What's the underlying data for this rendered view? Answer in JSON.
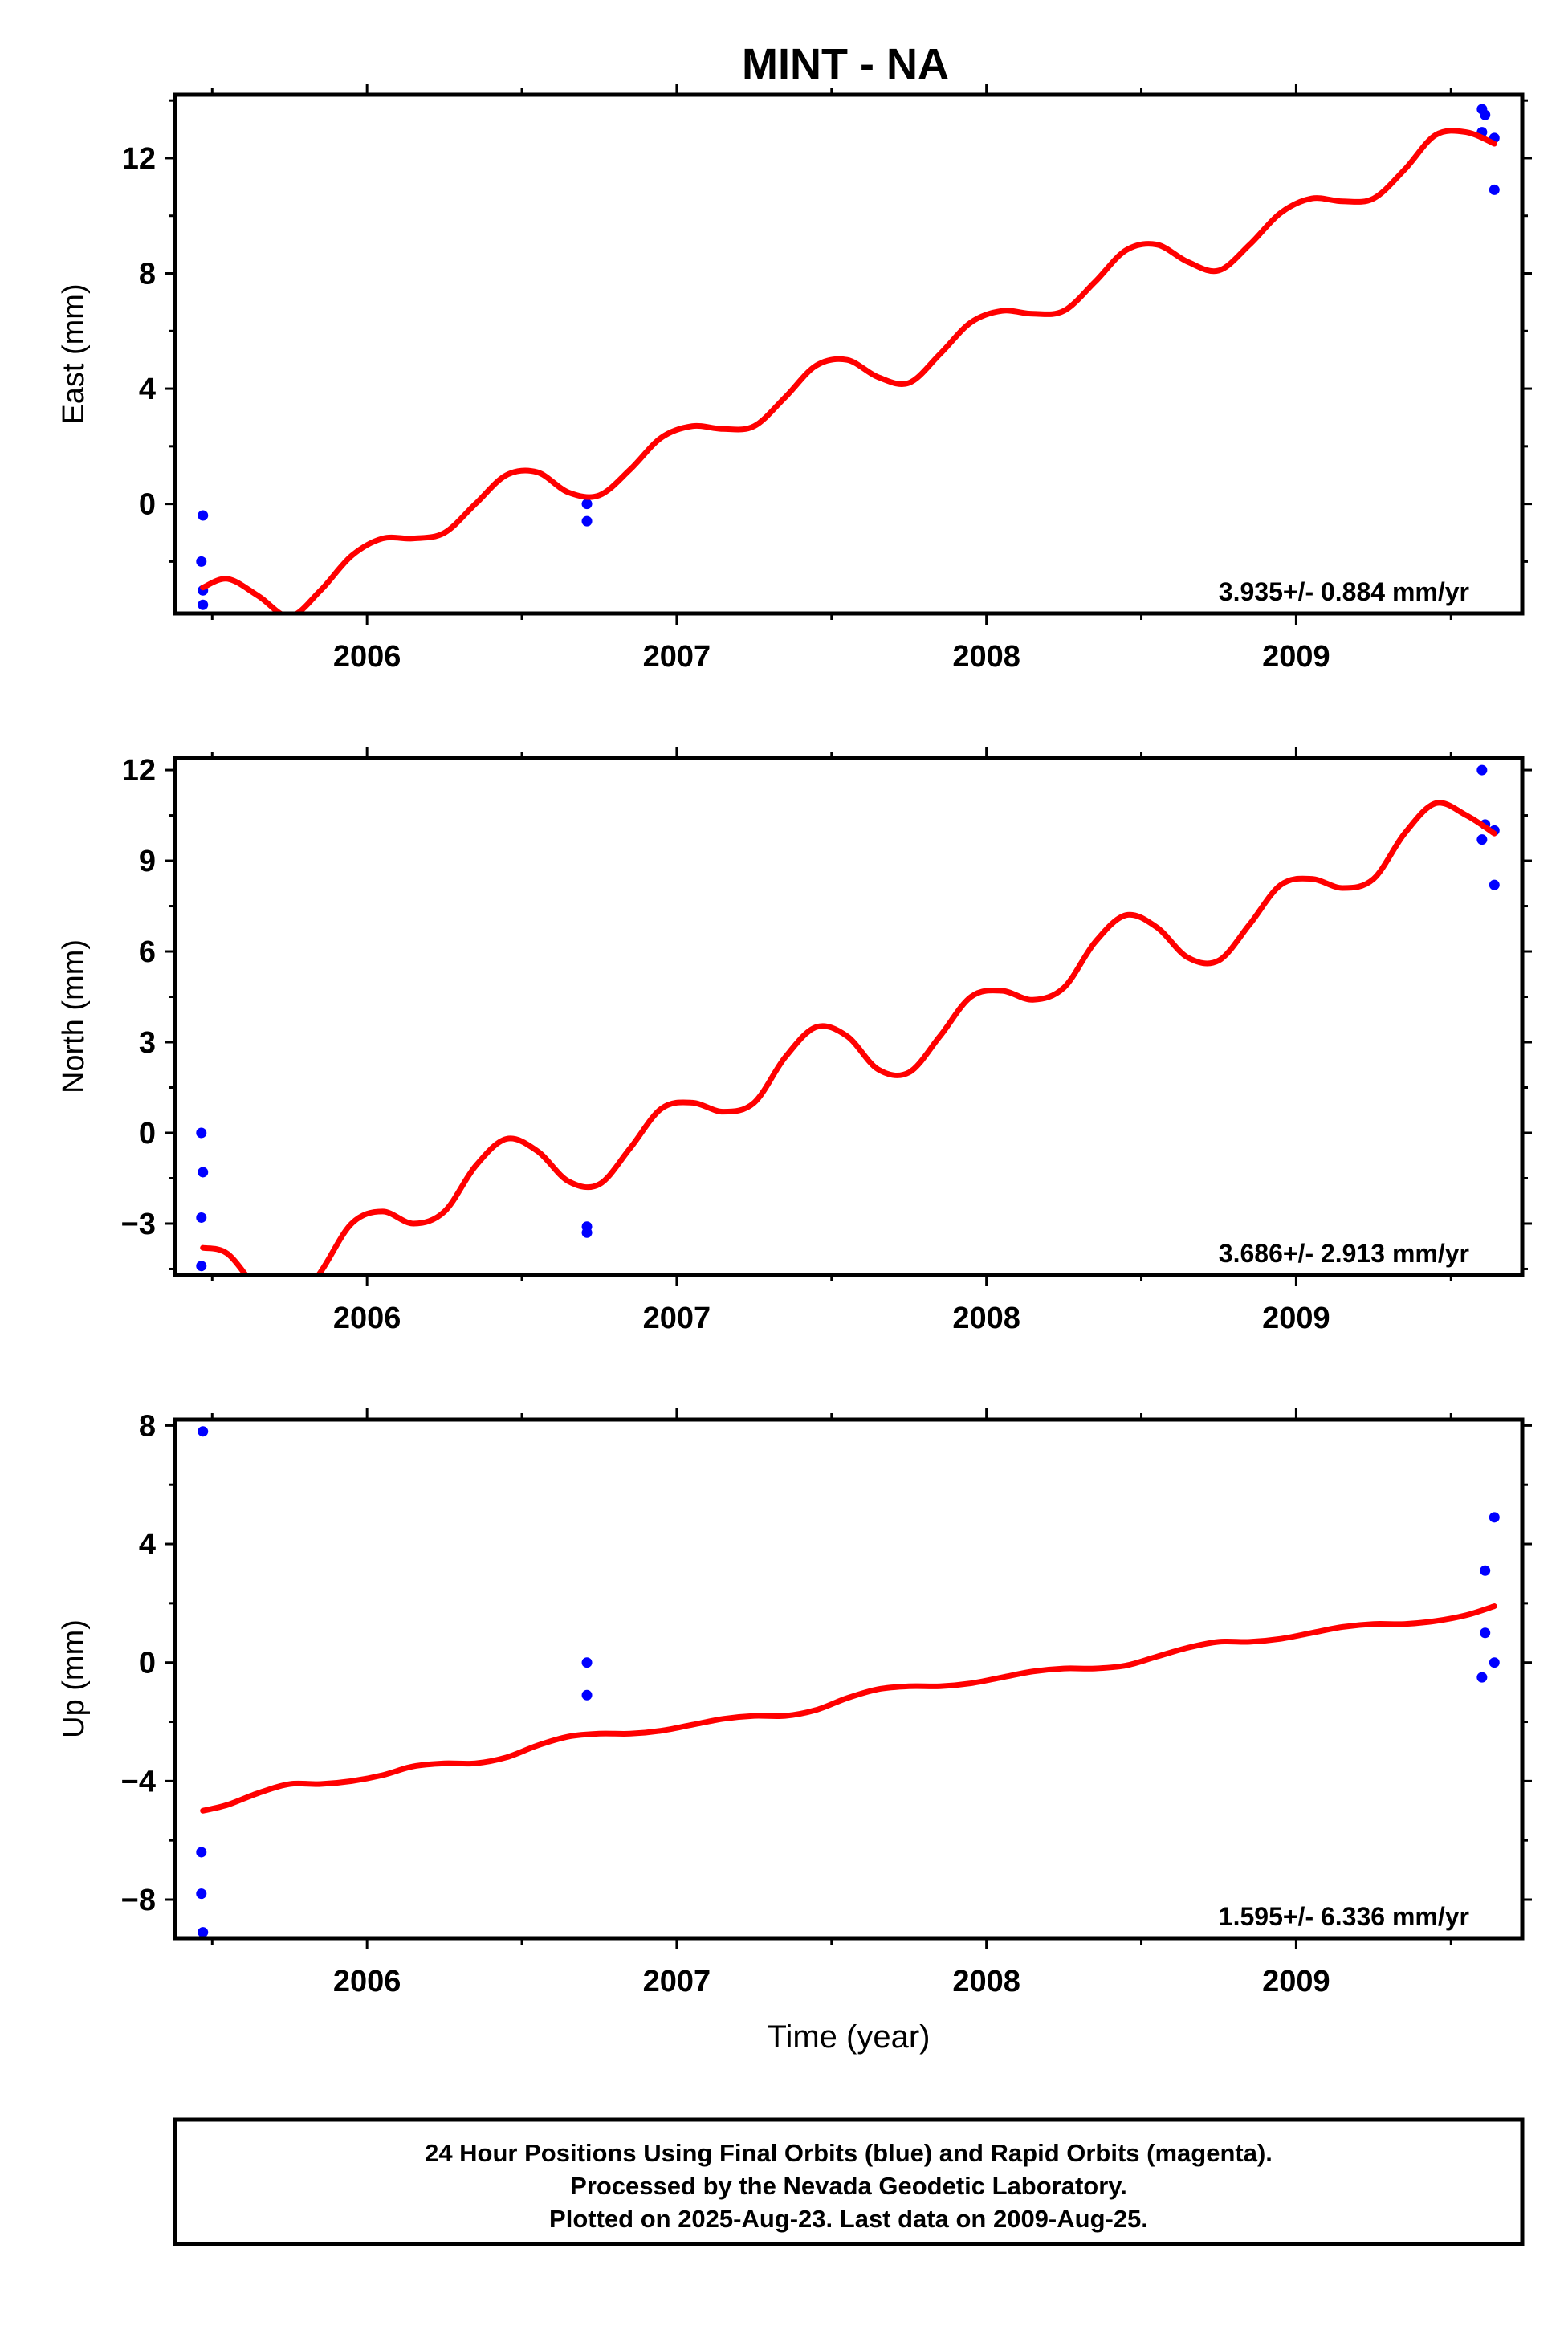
{
  "title": "MINT - NA",
  "colors": {
    "final_orbits": "#0000ff",
    "rapid_orbits": "#ff00ff",
    "model_fit": "#ff0000"
  },
  "footer": {
    "line1": "24 Hour Positions Using Final Orbits (blue) and Rapid Orbits (magenta).",
    "line2": "Processed by the Nevada Geodetic Laboratory.",
    "line3": "Plotted on 2025-Aug-23. Last data on 2009-Aug-25."
  },
  "chart_data": [
    {
      "type": "scatter",
      "panel": "east",
      "ylabel": "East (mm)",
      "xlabel": "",
      "xlim": [
        2005.38,
        2009.73
      ],
      "ylim": [
        -3.8,
        14.2
      ],
      "xticks": [
        2006,
        2007,
        2008,
        2009
      ],
      "yticks": [
        0,
        4,
        8,
        12
      ],
      "rate_label": "3.935+/- 0.884 mm/yr",
      "grid": false,
      "points": [
        {
          "x": 2005.47,
          "y": -0.4
        },
        {
          "x": 2005.465,
          "y": -2.0
        },
        {
          "x": 2005.47,
          "y": -3.0
        },
        {
          "x": 2005.47,
          "y": -3.5
        },
        {
          "x": 2006.71,
          "y": 0.0
        },
        {
          "x": 2006.71,
          "y": -0.6
        },
        {
          "x": 2009.6,
          "y": 13.7
        },
        {
          "x": 2009.61,
          "y": 13.5
        },
        {
          "x": 2009.6,
          "y": 12.9
        },
        {
          "x": 2009.64,
          "y": 12.7
        },
        {
          "x": 2009.64,
          "y": 10.9
        }
      ],
      "fit": {
        "name": "model",
        "x": [
          2005.47,
          2005.55,
          2005.65,
          2005.75,
          2005.85,
          2005.95,
          2006.05,
          2006.15,
          2006.25,
          2006.35,
          2006.45,
          2006.55,
          2006.65,
          2006.75,
          2006.85,
          2006.95,
          2007.05,
          2007.15,
          2007.25,
          2007.35,
          2007.45,
          2007.55,
          2007.65,
          2007.75,
          2007.85,
          2007.95,
          2008.05,
          2008.15,
          2008.25,
          2008.35,
          2008.45,
          2008.55,
          2008.65,
          2008.75,
          2008.85,
          2008.95,
          2009.05,
          2009.15,
          2009.25,
          2009.35,
          2009.45,
          2009.55,
          2009.64
        ],
        "y": [
          -2.9,
          -2.6,
          -3.2,
          -3.9,
          -3.0,
          -1.8,
          -1.2,
          -1.2,
          -1.0,
          0.0,
          1.0,
          1.1,
          0.4,
          0.3,
          1.2,
          2.3,
          2.7,
          2.6,
          2.7,
          3.7,
          4.8,
          5.0,
          4.4,
          4.2,
          5.2,
          6.3,
          6.7,
          6.6,
          6.7,
          7.7,
          8.8,
          9.0,
          8.4,
          8.1,
          9.0,
          10.1,
          10.6,
          10.5,
          10.6,
          11.6,
          12.8,
          12.9,
          12.5
        ]
      }
    },
    {
      "type": "scatter",
      "panel": "north",
      "ylabel": "North (mm)",
      "xlabel": "",
      "xlim": [
        2005.38,
        2009.73
      ],
      "ylim": [
        -4.7,
        12.4
      ],
      "xticks": [
        2006,
        2007,
        2008,
        2009
      ],
      "yticks": [
        -3,
        0,
        3,
        6,
        9,
        12
      ],
      "rate_label": "3.686+/- 2.913 mm/yr",
      "grid": false,
      "points": [
        {
          "x": 2005.465,
          "y": 0.0
        },
        {
          "x": 2005.47,
          "y": -1.3
        },
        {
          "x": 2005.465,
          "y": -2.8
        },
        {
          "x": 2005.465,
          "y": -4.4
        },
        {
          "x": 2006.71,
          "y": -3.1
        },
        {
          "x": 2006.71,
          "y": -3.3
        },
        {
          "x": 2009.6,
          "y": 12.0
        },
        {
          "x": 2009.61,
          "y": 10.2
        },
        {
          "x": 2009.6,
          "y": 9.7
        },
        {
          "x": 2009.64,
          "y": 10.0
        },
        {
          "x": 2009.64,
          "y": 8.2
        }
      ],
      "fit": {
        "name": "model",
        "x": [
          2005.47,
          2005.55,
          2005.65,
          2005.75,
          2005.85,
          2005.95,
          2006.05,
          2006.15,
          2006.25,
          2006.35,
          2006.45,
          2006.55,
          2006.65,
          2006.75,
          2006.85,
          2006.95,
          2007.05,
          2007.15,
          2007.25,
          2007.35,
          2007.45,
          2007.55,
          2007.65,
          2007.75,
          2007.85,
          2007.95,
          2008.05,
          2008.15,
          2008.25,
          2008.35,
          2008.45,
          2008.55,
          2008.65,
          2008.75,
          2008.85,
          2008.95,
          2009.05,
          2009.15,
          2009.25,
          2009.35,
          2009.45,
          2009.55,
          2009.64
        ],
        "y": [
          -3.8,
          -4.0,
          -5.2,
          -5.9,
          -4.6,
          -3.0,
          -2.6,
          -3.0,
          -2.6,
          -1.1,
          -0.2,
          -0.6,
          -1.6,
          -1.7,
          -0.5,
          0.8,
          1.0,
          0.7,
          1.0,
          2.5,
          3.5,
          3.2,
          2.1,
          2.0,
          3.2,
          4.5,
          4.7,
          4.4,
          4.8,
          6.3,
          7.2,
          6.8,
          5.8,
          5.7,
          6.9,
          8.2,
          8.4,
          8.1,
          8.4,
          9.9,
          10.9,
          10.5,
          9.9
        ]
      }
    },
    {
      "type": "scatter",
      "panel": "up",
      "ylabel": "Up (mm)",
      "xlabel": "Time (year)",
      "xlim": [
        2005.38,
        2009.73
      ],
      "ylim": [
        -9.3,
        8.2
      ],
      "xticks": [
        2006,
        2007,
        2008,
        2009
      ],
      "yticks": [
        -8,
        -4,
        0,
        4,
        8
      ],
      "rate_label": "1.595+/- 6.336 mm/yr",
      "grid": false,
      "points": [
        {
          "x": 2005.47,
          "y": 7.8
        },
        {
          "x": 2005.465,
          "y": -6.4
        },
        {
          "x": 2005.465,
          "y": -7.8
        },
        {
          "x": 2005.47,
          "y": -9.1
        },
        {
          "x": 2006.71,
          "y": 0.0
        },
        {
          "x": 2006.71,
          "y": -1.1
        },
        {
          "x": 2009.64,
          "y": 4.9
        },
        {
          "x": 2009.61,
          "y": 3.1
        },
        {
          "x": 2009.61,
          "y": 1.0
        },
        {
          "x": 2009.6,
          "y": -0.5
        },
        {
          "x": 2009.64,
          "y": 0.0
        }
      ],
      "fit": {
        "name": "model",
        "x": [
          2005.47,
          2005.55,
          2005.65,
          2005.75,
          2005.85,
          2005.95,
          2006.05,
          2006.15,
          2006.25,
          2006.35,
          2006.45,
          2006.55,
          2006.65,
          2006.75,
          2006.85,
          2006.95,
          2007.05,
          2007.15,
          2007.25,
          2007.35,
          2007.45,
          2007.55,
          2007.65,
          2007.75,
          2007.85,
          2007.95,
          2008.05,
          2008.15,
          2008.25,
          2008.35,
          2008.45,
          2008.55,
          2008.65,
          2008.75,
          2008.85,
          2008.95,
          2009.05,
          2009.15,
          2009.25,
          2009.35,
          2009.45,
          2009.55,
          2009.64
        ],
        "y": [
          -5.0,
          -4.8,
          -4.4,
          -4.1,
          -4.1,
          -4.0,
          -3.8,
          -3.5,
          -3.4,
          -3.4,
          -3.2,
          -2.8,
          -2.5,
          -2.4,
          -2.4,
          -2.3,
          -2.1,
          -1.9,
          -1.8,
          -1.8,
          -1.6,
          -1.2,
          -0.9,
          -0.8,
          -0.8,
          -0.7,
          -0.5,
          -0.3,
          -0.2,
          -0.2,
          -0.1,
          0.2,
          0.5,
          0.7,
          0.7,
          0.8,
          1.0,
          1.2,
          1.3,
          1.3,
          1.4,
          1.6,
          1.9
        ]
      }
    }
  ]
}
